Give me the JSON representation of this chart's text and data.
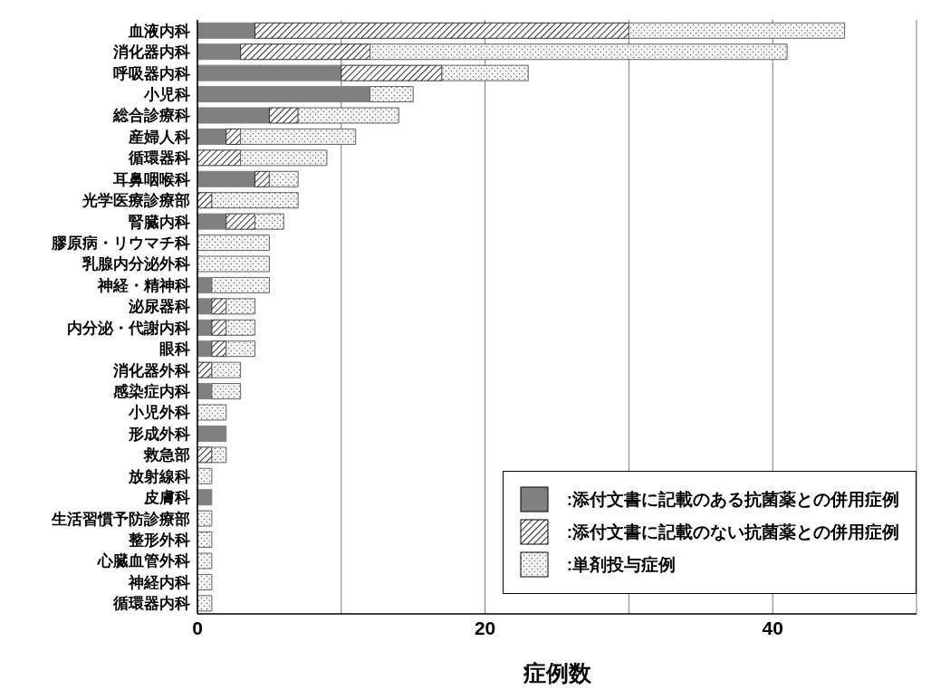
{
  "chart_data": {
    "type": "bar",
    "orientation": "horizontal",
    "stacked": true,
    "xlabel": "症例数",
    "categories": [
      "血液内科",
      "消化器内科",
      "呼吸器内科",
      "小児科",
      "総合診療科",
      "産婦人科",
      "循環器科",
      "耳鼻咽喉科",
      "光学医療診療部",
      "腎臓内科",
      "膠原病・リウマチ科",
      "乳腺内分泌外科",
      "神経・精神科",
      "泌尿器科",
      "内分泌・代謝内科",
      "眼科",
      "消化器外科",
      "感染症内科",
      "小児外科",
      "形成外科",
      "救急部",
      "放射線科",
      "皮膚科",
      "生活習慣予防診療部",
      "整形外科",
      "心臓血管外科",
      "神経内科",
      "循環器内科"
    ],
    "series": [
      {
        "name": ":添付文書に記載のある抗菌薬との併用症例",
        "color": "#808080",
        "values": [
          4,
          3,
          10,
          12,
          5,
          2,
          0,
          4,
          0,
          2,
          0,
          0,
          1,
          1,
          1,
          1,
          0,
          1,
          0,
          2,
          0,
          0,
          1,
          0,
          0,
          0,
          0,
          0
        ]
      },
      {
        "name": ":添付文書に記載のない抗菌薬との併用症例",
        "color": "#303030",
        "values": [
          26,
          9,
          7,
          0,
          2,
          1,
          3,
          1,
          1,
          2,
          0,
          0,
          0,
          1,
          1,
          1,
          1,
          0,
          0,
          0,
          1,
          0,
          0,
          0,
          0,
          0,
          0,
          0
        ]
      },
      {
        "name": ":単剤投与症例",
        "color": "#606060",
        "values": [
          15,
          29,
          6,
          3,
          7,
          8,
          6,
          2,
          6,
          2,
          5,
          5,
          4,
          2,
          2,
          2,
          2,
          2,
          2,
          0,
          1,
          1,
          0,
          1,
          1,
          1,
          1,
          1
        ]
      }
    ],
    "xlim": [
      0,
      50
    ],
    "xticks": [
      0,
      {
        "value": 10,
        "label": null
      },
      20,
      {
        "value": 30,
        "label": null
      },
      40
    ],
    "grid": "x",
    "legend": "bottom right"
  }
}
